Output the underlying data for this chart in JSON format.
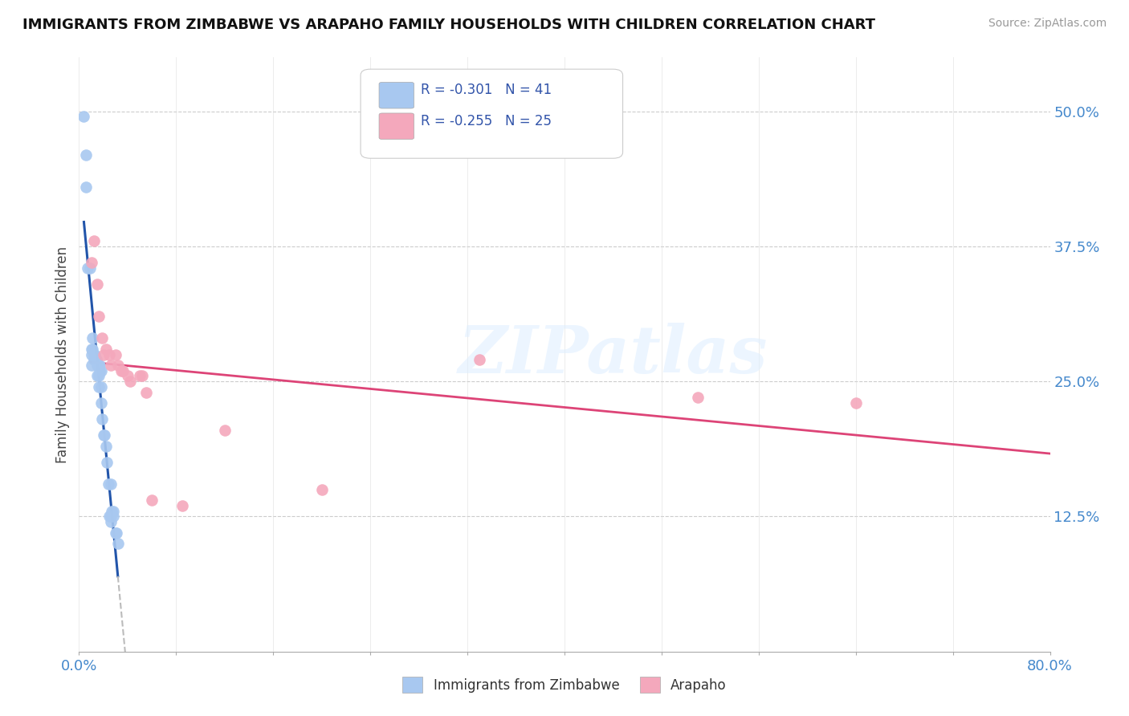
{
  "title": "IMMIGRANTS FROM ZIMBABWE VS ARAPAHO FAMILY HOUSEHOLDS WITH CHILDREN CORRELATION CHART",
  "source": "Source: ZipAtlas.com",
  "ylabel": "Family Households with Children",
  "ytick_labels": [
    "",
    "12.5%",
    "25.0%",
    "37.5%",
    "50.0%"
  ],
  "ytick_values": [
    0.0,
    0.125,
    0.25,
    0.375,
    0.5
  ],
  "xtick_positions": [
    0.0,
    0.08,
    0.16,
    0.24,
    0.32,
    0.4,
    0.48,
    0.56,
    0.64,
    0.72,
    0.8
  ],
  "xlim": [
    0.0,
    0.8
  ],
  "ylim": [
    0.0,
    0.55
  ],
  "blue_color": "#A8C8F0",
  "pink_color": "#F4A8BC",
  "trendline_blue_color": "#2255AA",
  "trendline_pink_color": "#DD4477",
  "trendline_dashed_color": "#BBBBBB",
  "watermark": "ZIPatlas",
  "background_color": "#FFFFFF",
  "scatter_blue_x": [
    0.004,
    0.006,
    0.006,
    0.007,
    0.009,
    0.01,
    0.01,
    0.01,
    0.011,
    0.011,
    0.012,
    0.012,
    0.013,
    0.014,
    0.014,
    0.015,
    0.015,
    0.016,
    0.016,
    0.016,
    0.017,
    0.017,
    0.018,
    0.018,
    0.018,
    0.019,
    0.02,
    0.021,
    0.022,
    0.023,
    0.024,
    0.025,
    0.026,
    0.026,
    0.026,
    0.027,
    0.028,
    0.028,
    0.03,
    0.031,
    0.032
  ],
  "scatter_blue_y": [
    0.495,
    0.43,
    0.46,
    0.355,
    0.355,
    0.28,
    0.275,
    0.265,
    0.29,
    0.28,
    0.275,
    0.27,
    0.275,
    0.27,
    0.27,
    0.265,
    0.255,
    0.265,
    0.255,
    0.245,
    0.265,
    0.26,
    0.26,
    0.245,
    0.23,
    0.215,
    0.2,
    0.2,
    0.19,
    0.175,
    0.155,
    0.125,
    0.125,
    0.12,
    0.155,
    0.13,
    0.13,
    0.125,
    0.11,
    0.11,
    0.1
  ],
  "scatter_pink_x": [
    0.01,
    0.012,
    0.015,
    0.016,
    0.019,
    0.02,
    0.022,
    0.025,
    0.026,
    0.03,
    0.032,
    0.035,
    0.036,
    0.04,
    0.042,
    0.05,
    0.052,
    0.055,
    0.06,
    0.085,
    0.12,
    0.2,
    0.33,
    0.51,
    0.64
  ],
  "scatter_pink_y": [
    0.36,
    0.38,
    0.34,
    0.31,
    0.29,
    0.275,
    0.28,
    0.275,
    0.265,
    0.275,
    0.265,
    0.26,
    0.26,
    0.255,
    0.25,
    0.255,
    0.255,
    0.24,
    0.14,
    0.135,
    0.205,
    0.15,
    0.27,
    0.235,
    0.23
  ],
  "trendline_blue_x0": 0.004,
  "trendline_blue_x1": 0.032,
  "trendline_blue_xdash_end": 0.045,
  "trendline_pink_x0": 0.01,
  "trendline_pink_x1": 0.8
}
